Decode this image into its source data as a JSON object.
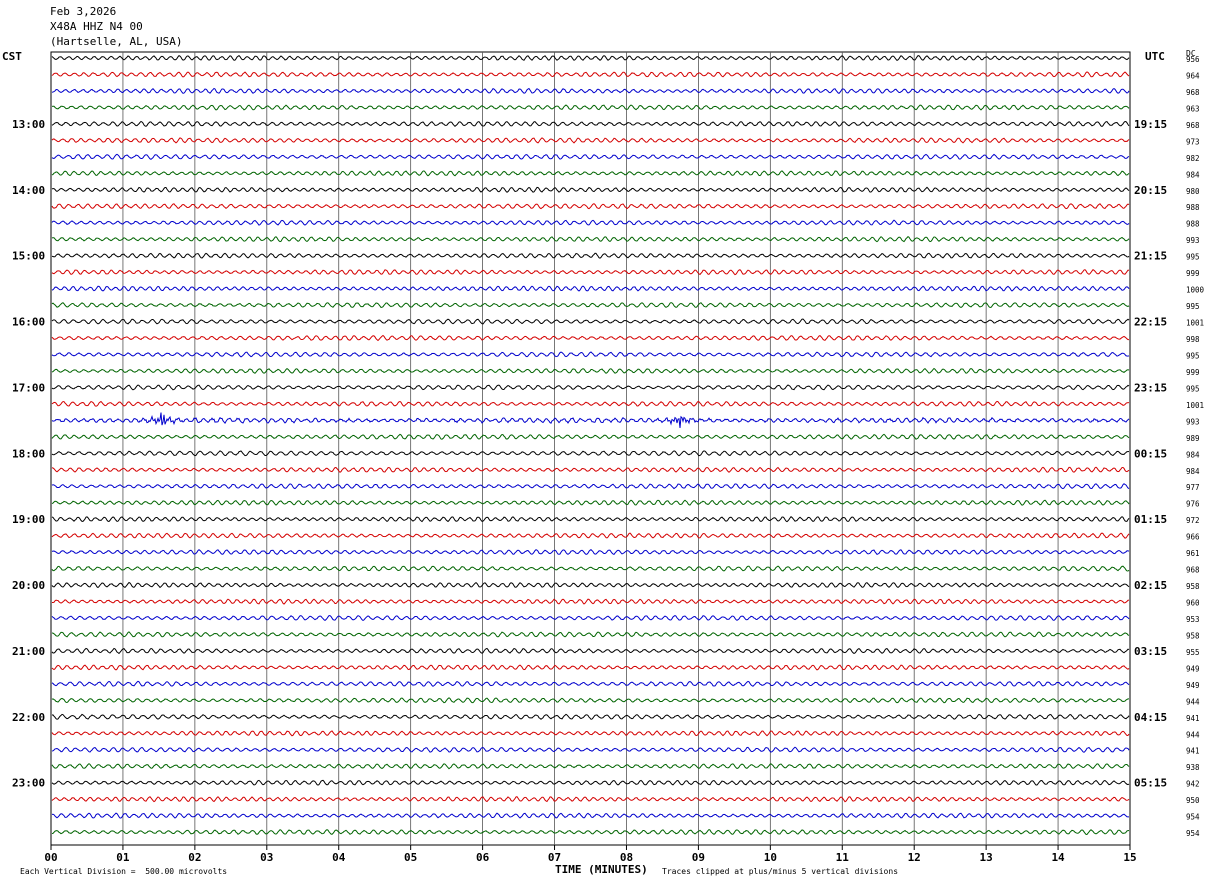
{
  "header": {
    "date": "Feb 3,2026",
    "station": "X48A HHZ N4 00",
    "location": "(Hartselle, AL, USA)"
  },
  "left_tz": "CST",
  "right_tz": "UTC",
  "dc_label": "DC",
  "footer": {
    "scale": "Each Vertical Division =  500.00 microvolts",
    "clip": "Traces clipped at plus/minus 5 vertical divisions",
    "xlabel": "TIME (MINUTES)"
  },
  "chart_data": {
    "type": "line",
    "title": "",
    "xlabel": "TIME (MINUTES)",
    "xlim": [
      0,
      15
    ],
    "x_ticks": [
      "00",
      "01",
      "02",
      "03",
      "04",
      "05",
      "06",
      "07",
      "08",
      "09",
      "10",
      "11",
      "12",
      "13",
      "14",
      "15"
    ],
    "left_hour_labels": [
      "13:00",
      "14:00",
      "15:00",
      "16:00",
      "17:00",
      "18:00",
      "19:00",
      "20:00",
      "21:00",
      "22:00",
      "23:00"
    ],
    "right_hour_labels": [
      "19:15",
      "20:15",
      "21:15",
      "22:15",
      "23:15",
      "00:15",
      "01:15",
      "02:15",
      "03:15",
      "04:15",
      "05:15"
    ],
    "trace_colors": [
      "#000000",
      "#d40000",
      "#0000cc",
      "#006400"
    ],
    "dc_offsets": [
      956,
      964,
      968,
      963,
      968,
      973,
      982,
      984,
      980,
      988,
      988,
      993,
      995,
      999,
      1000,
      995,
      1001,
      998,
      995,
      999,
      995,
      1001,
      993,
      989,
      984,
      984,
      977,
      976,
      972,
      966,
      961,
      968,
      958,
      960,
      953,
      958,
      955,
      949,
      949,
      944,
      941,
      944,
      941,
      938,
      942,
      950,
      954,
      954
    ],
    "events": [
      {
        "trace": 22,
        "minute": 1.55,
        "label": "local spike"
      },
      {
        "trace": 22,
        "minute": 8.75,
        "label": "local spike"
      }
    ]
  }
}
